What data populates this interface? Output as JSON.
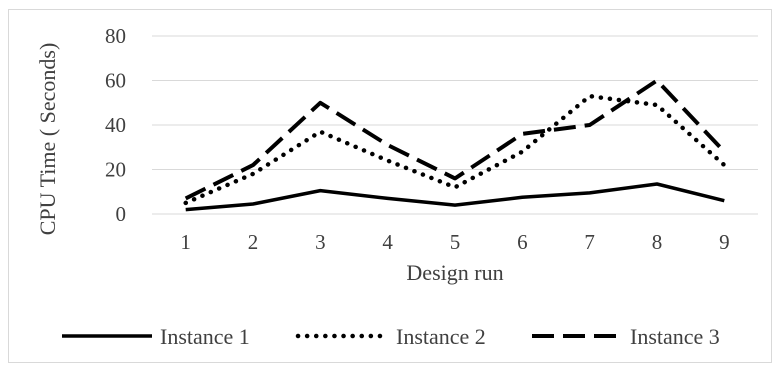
{
  "chart_data": {
    "type": "line",
    "x": [
      1,
      2,
      3,
      4,
      5,
      6,
      7,
      8,
      9
    ],
    "series": [
      {
        "name": "Instance 1",
        "values": [
          2,
          4.5,
          10.5,
          7,
          4,
          7.5,
          9.5,
          13.5,
          6
        ],
        "dash": "solid"
      },
      {
        "name": "Instance 2",
        "values": [
          5,
          18,
          37,
          24,
          12,
          28,
          53,
          49,
          22
        ],
        "dash": "dotted"
      },
      {
        "name": "Instance 3",
        "values": [
          7,
          22,
          50,
          31,
          16,
          36,
          40,
          60,
          28
        ],
        "dash": "dashed"
      }
    ],
    "title": "",
    "xlabel": "Design run",
    "ylabel": "CPU Time ( Seconds)",
    "ylim": [
      0,
      80
    ],
    "yticks": [
      "0",
      "20",
      "40",
      "60",
      "80"
    ],
    "xticks": [
      "1",
      "2",
      "3",
      "4",
      "5",
      "6",
      "7",
      "8",
      "9"
    ],
    "grid": true,
    "legend_position": "bottom",
    "colors": {
      "line": "#000000",
      "grid": "#d9d9d9",
      "text": "#404040"
    }
  }
}
